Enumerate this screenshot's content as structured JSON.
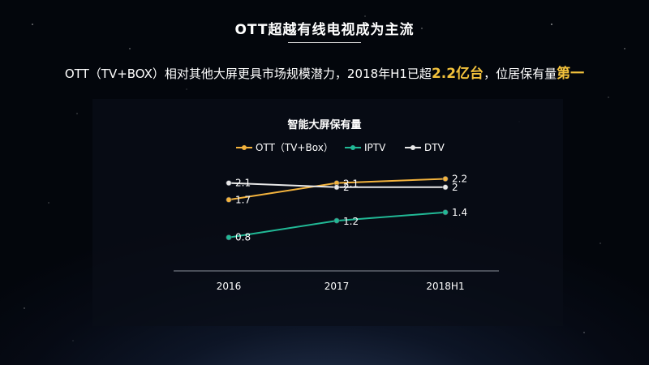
{
  "page": {
    "title": "OTT超越有线电视成为主流",
    "subtitle": {
      "part1": "OTT（TV+BOX）相对其他大屏更具市场规模潜力，2018年H1已超",
      "hl1": "2.2亿台",
      "part2": "，位居保有量",
      "hl2": "第一"
    }
  },
  "colors": {
    "ott": "#f3b33d",
    "iptv": "#21b996",
    "dtv": "#e8e8e8",
    "highlight": "#f3c23c"
  },
  "chart_data": {
    "type": "line",
    "title": "智能大屏保有量",
    "categories": [
      "2016",
      "2017",
      "2018H1"
    ],
    "ylim": [
      0,
      3
    ],
    "grid": false,
    "legend": "top",
    "series": [
      {
        "name": "OTT（TV+Box）",
        "color": "#f3b33d",
        "values": [
          1.7,
          2.1,
          2.2
        ],
        "labels": [
          "1.7",
          "2.1",
          "2.2"
        ]
      },
      {
        "name": "IPTV",
        "color": "#21b996",
        "values": [
          0.8,
          1.2,
          1.4
        ],
        "labels": [
          "0.8",
          "1.2",
          "1.4"
        ]
      },
      {
        "name": "DTV",
        "color": "#e8e8e8",
        "values": [
          2.1,
          2.0,
          2.0
        ],
        "labels": [
          "2.1",
          "2",
          "2"
        ]
      }
    ]
  }
}
